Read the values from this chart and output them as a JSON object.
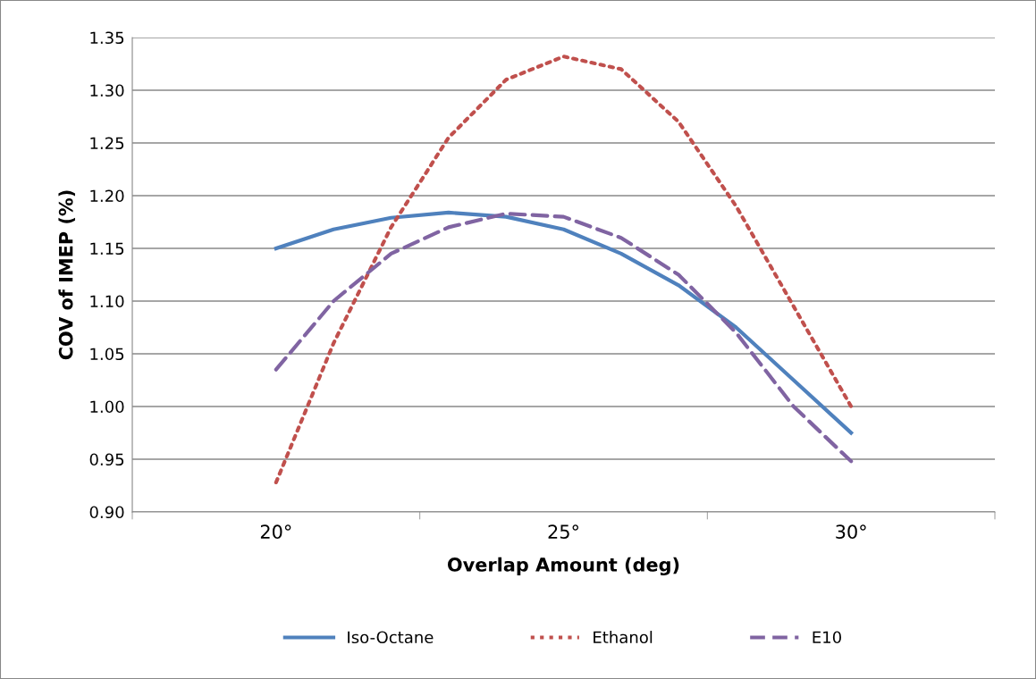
{
  "chart_data": {
    "type": "line",
    "xlabel": "Overlap Amount (deg)",
    "ylabel": "COV of IMEP (%)",
    "xlim": [
      17.5,
      32.5
    ],
    "xticks": [
      {
        "value": 17.5,
        "label": null
      },
      {
        "value": 20,
        "label": "20°"
      },
      {
        "value": 22.5,
        "label": null
      },
      {
        "value": 25,
        "label": "25°"
      },
      {
        "value": 27.5,
        "label": null
      },
      {
        "value": 30,
        "label": "30°"
      },
      {
        "value": 32.5,
        "label": null
      }
    ],
    "ylim": [
      0.9,
      1.35
    ],
    "yticks": [
      {
        "value": 0.9,
        "label": "0.90"
      },
      {
        "value": 0.95,
        "label": "0.95"
      },
      {
        "value": 1.0,
        "label": "1.00"
      },
      {
        "value": 1.05,
        "label": "1.05"
      },
      {
        "value": 1.1,
        "label": "1.10"
      },
      {
        "value": 1.15,
        "label": "1.15"
      },
      {
        "value": 1.2,
        "label": "1.20"
      },
      {
        "value": 1.25,
        "label": "1.25"
      },
      {
        "value": 1.3,
        "label": "1.30"
      },
      {
        "value": 1.35,
        "label": "1.35"
      }
    ],
    "grid": "y",
    "legend": "bottom",
    "marker": "none",
    "x": [
      20,
      21,
      22,
      23,
      24,
      25,
      26,
      27,
      28,
      29,
      30
    ],
    "series": [
      {
        "name": "Iso-Octane",
        "color": "#4f81bd",
        "line_style": "solid",
        "values": [
          1.15,
          1.168,
          1.179,
          1.184,
          1.18,
          1.168,
          1.145,
          1.115,
          1.075,
          1.025,
          0.975
        ]
      },
      {
        "name": "Ethanol",
        "color": "#c0504d",
        "line_style": "dotted",
        "values": [
          0.928,
          1.06,
          1.17,
          1.255,
          1.31,
          1.332,
          1.32,
          1.27,
          1.19,
          1.095,
          1.0
        ]
      },
      {
        "name": "E10",
        "color": "#8064a2",
        "line_style": "dashed",
        "values": [
          1.035,
          1.1,
          1.145,
          1.17,
          1.183,
          1.18,
          1.16,
          1.125,
          1.07,
          1.0,
          0.948
        ]
      }
    ]
  }
}
